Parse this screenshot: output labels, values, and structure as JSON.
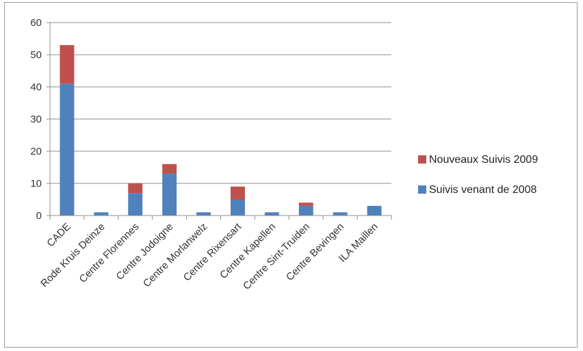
{
  "chart_data": {
    "type": "bar",
    "stacked": true,
    "categories": [
      "CADE",
      "Rode Kruis Deinze",
      "Centre Florennes",
      "Centre Jodoigne",
      "Centre Morlanwelz",
      "Centre Rixensart",
      "Centre Kapellen",
      "Centre Sint-Truiden",
      "Centre Bevingen",
      "ILA Maillen"
    ],
    "series": [
      {
        "name": "Suivis venant de 2008",
        "color": "#4f81bd",
        "values": [
          41,
          1,
          7,
          13,
          1,
          5,
          1,
          3,
          1,
          3
        ]
      },
      {
        "name": "Nouveaux Suivis 2009",
        "color": "#c0504d",
        "values": [
          12,
          0,
          3,
          3,
          0,
          4,
          0,
          1,
          0,
          0
        ]
      }
    ],
    "title": "",
    "xlabel": "",
    "ylabel": "",
    "ylim": [
      0,
      60
    ],
    "yticks": [
      0,
      10,
      20,
      30,
      40,
      50,
      60
    ],
    "grid": true,
    "legend": "right",
    "legend_order": [
      "Nouveaux Suivis 2009",
      "Suivis venant de 2008"
    ]
  }
}
